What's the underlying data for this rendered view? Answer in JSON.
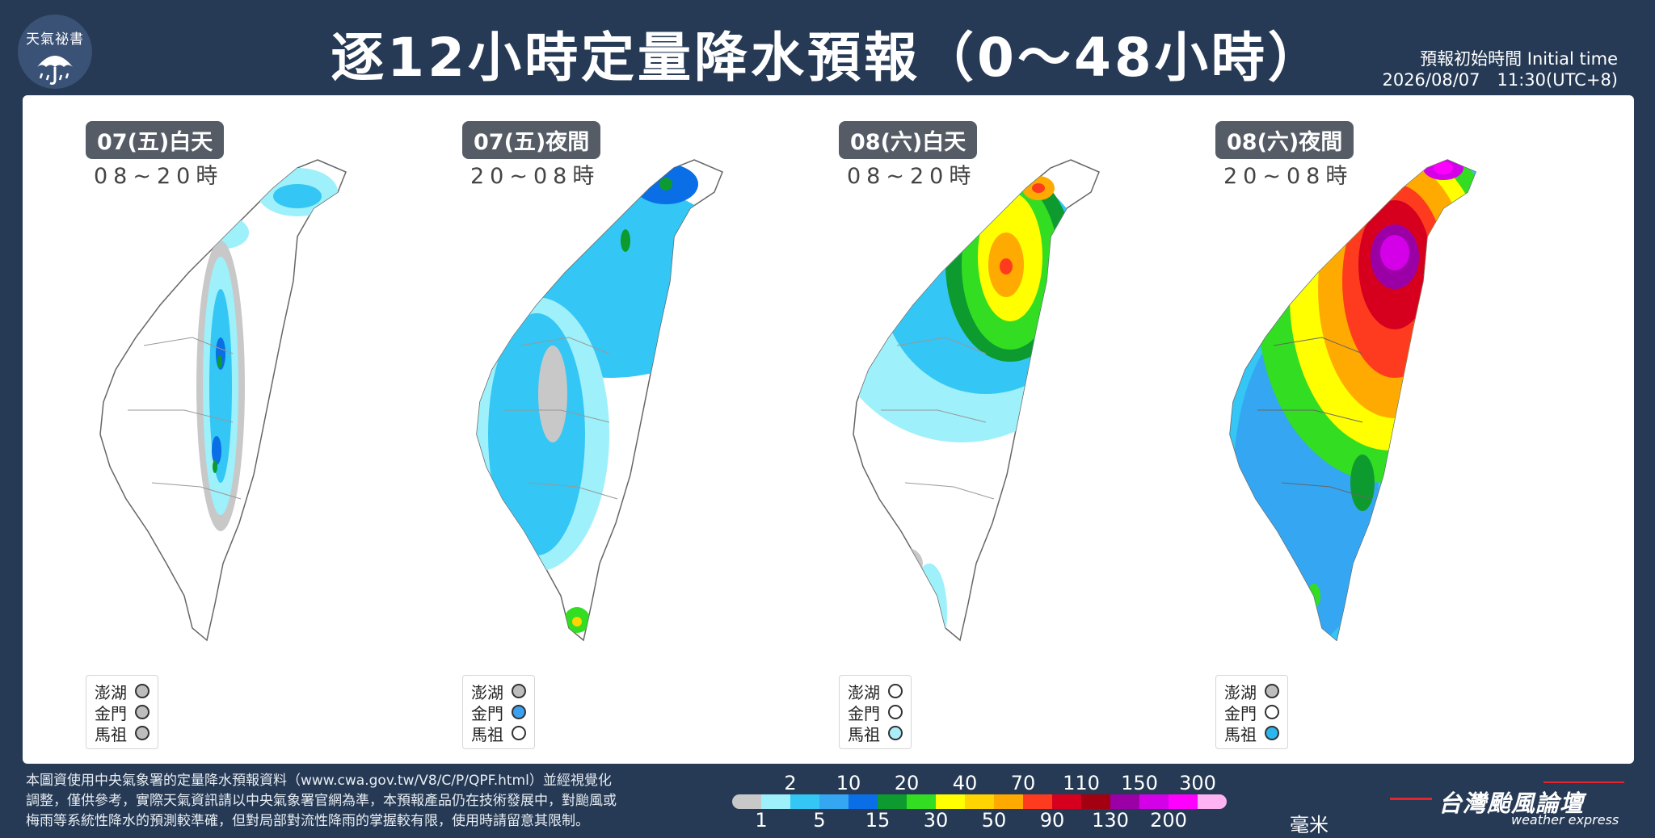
{
  "header": {
    "logo_text": "天氣祕書",
    "title": "逐12小時定量降水預報（0～48小時）",
    "init_label": "預報初始時間 Initial time",
    "init_value": "2026/08/07　11:30(UTC+8)"
  },
  "maps": [
    {
      "period": "07(五)白天",
      "hours": "08~20時",
      "islands": [
        {
          "name": "澎湖",
          "color": "#bdbdbd"
        },
        {
          "name": "金門",
          "color": "#bdbdbd"
        },
        {
          "name": "馬祖",
          "color": "#bdbdbd"
        }
      ]
    },
    {
      "period": "07(五)夜間",
      "hours": "20~08時",
      "islands": [
        {
          "name": "澎湖",
          "color": "#bdbdbd"
        },
        {
          "name": "金門",
          "color": "#3aa0f0"
        },
        {
          "name": "馬祖",
          "color": "#ffffff"
        }
      ]
    },
    {
      "period": "08(六)白天",
      "hours": "08~20時",
      "islands": [
        {
          "name": "澎湖",
          "color": "#ffffff"
        },
        {
          "name": "金門",
          "color": "#ffffff"
        },
        {
          "name": "馬祖",
          "color": "#aaeef8"
        }
      ]
    },
    {
      "period": "08(六)夜間",
      "hours": "20~08時",
      "islands": [
        {
          "name": "澎湖",
          "color": "#bdbdbd"
        },
        {
          "name": "金門",
          "color": "#ffffff"
        },
        {
          "name": "馬祖",
          "color": "#2bb6ee"
        }
      ]
    }
  ],
  "footer": {
    "line1": "本圖資使用中央氣象署的定量降水預報資料（www.cwa.gov.tw/V8/C/P/QPF.html）並經視覺化",
    "line2": "調整，僅供參考，實際天氣資訊請以中央氣象署官網為準，本預報產品仍在技術發展中，對颱風或",
    "line3": "梅雨等系統性降水的預測較準確，但對局部對流性降雨的掌握較有限，使用時請留意其限制。"
  },
  "colorbar": {
    "colors": [
      "#c8c8c8",
      "#9ef0fa",
      "#34c6f4",
      "#35a6f2",
      "#0a6ee6",
      "#0d9b30",
      "#33dd22",
      "#ffff00",
      "#ffd400",
      "#ffaa00",
      "#ff3b1f",
      "#d6001e",
      "#a30012",
      "#9b00a6",
      "#d400e8",
      "#ff00ff",
      "#ffb3f2"
    ],
    "top_labels": [
      "2",
      "10",
      "20",
      "40",
      "70",
      "110",
      "150",
      "300"
    ],
    "bottom_labels": [
      "1",
      "5",
      "15",
      "30",
      "50",
      "90",
      "130",
      "200"
    ],
    "unit": "毫米"
  },
  "brand": {
    "name": "台灣颱風論壇",
    "sub": "weather express"
  }
}
